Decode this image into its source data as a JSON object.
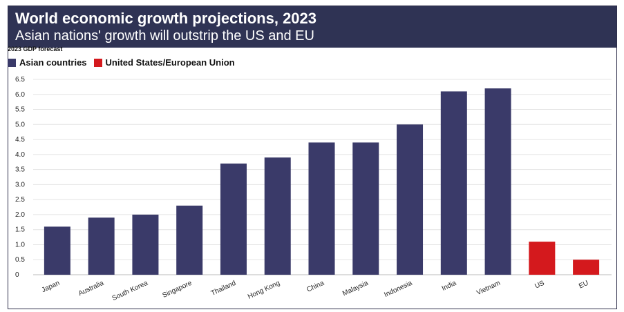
{
  "header": {
    "title": "World economic growth projections, 2023",
    "subtitle": "Asian nations' growth will outstrip the US and EU"
  },
  "chart_label": "2023 GDP forecast",
  "legend": [
    {
      "label": "Asian countries",
      "color": "#3a3a69"
    },
    {
      "label": "United States/European Union",
      "color": "#d4191d"
    }
  ],
  "colors": {
    "header_bg": "#2f3354",
    "asian": "#3a3a69",
    "us_eu": "#d4191d",
    "grid": "#e4e4e4"
  },
  "chart_data": {
    "type": "bar",
    "title": "World economic growth projections, 2023",
    "subtitle": "Asian nations' growth will outstrip the US and EU",
    "ylabel": "2023 GDP forecast",
    "xlabel": "",
    "ylim": [
      0,
      6.5
    ],
    "yticks": [
      0,
      0.5,
      1.0,
      1.5,
      2.0,
      2.5,
      3.0,
      3.5,
      4.0,
      4.5,
      5.0,
      5.5,
      6.0,
      6.5
    ],
    "ytick_labels": [
      "0",
      "0.5",
      "1.0",
      "1.5",
      "2.0",
      "2.5",
      "3.0",
      "3.5",
      "4.0",
      "4.5",
      "5.0",
      "5.5",
      "6.0",
      "6.5"
    ],
    "grid": true,
    "legend_position": "top-left",
    "categories": [
      "Japan",
      "Australia",
      "South Korea",
      "Singapore",
      "Thailand",
      "Hong Kong",
      "China",
      "Malaysia",
      "Indonesia",
      "India",
      "Vietnam",
      "US",
      "EU"
    ],
    "values": [
      1.6,
      1.9,
      2.0,
      2.3,
      3.7,
      3.9,
      4.4,
      4.4,
      5.0,
      6.1,
      6.2,
      1.1,
      0.5
    ],
    "groups": [
      "Asian countries",
      "Asian countries",
      "Asian countries",
      "Asian countries",
      "Asian countries",
      "Asian countries",
      "Asian countries",
      "Asian countries",
      "Asian countries",
      "Asian countries",
      "Asian countries",
      "United States/European Union",
      "United States/European Union"
    ]
  }
}
